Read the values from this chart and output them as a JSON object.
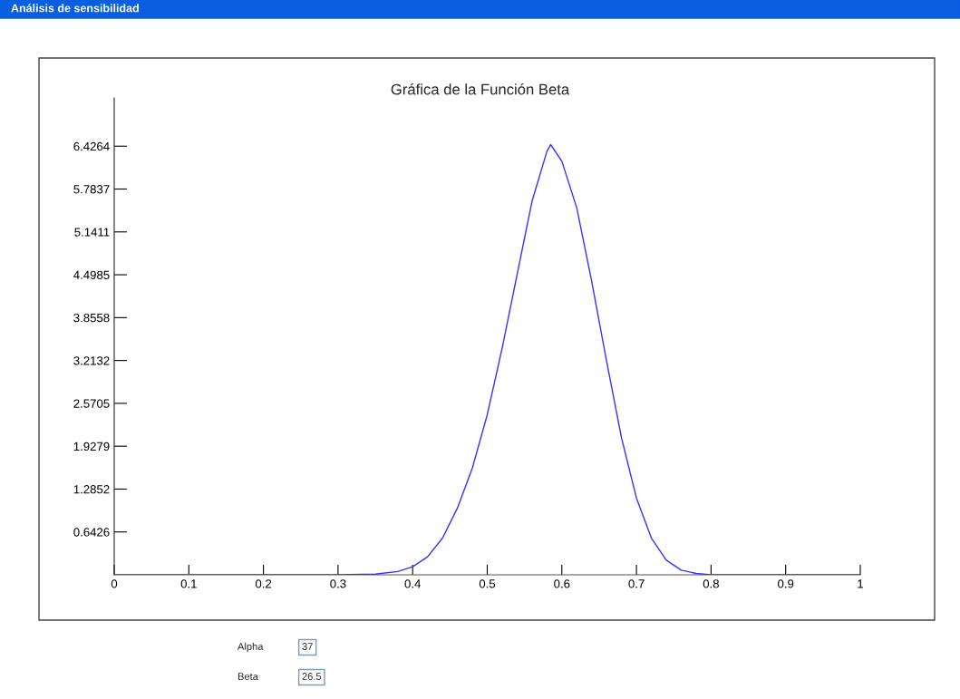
{
  "chart_data": {
    "type": "line",
    "title": "Gráfica de la Función Beta",
    "x": [
      0,
      0.1,
      0.2,
      0.3,
      0.35,
      0.38,
      0.4,
      0.42,
      0.44,
      0.46,
      0.48,
      0.5,
      0.52,
      0.54,
      0.56,
      0.58,
      0.585,
      0.6,
      0.62,
      0.64,
      0.66,
      0.68,
      0.7,
      0.72,
      0.74,
      0.76,
      0.78,
      0.8,
      0.9,
      1
    ],
    "series": [
      {
        "color": "#3333ff",
        "values": [
          0,
          0,
          0,
          0,
          0.01,
          0.05,
          0.12,
          0.27,
          0.55,
          1.0,
          1.6,
          2.4,
          3.4,
          4.5,
          5.6,
          6.35,
          6.45,
          6.2,
          5.5,
          4.4,
          3.2,
          2.05,
          1.15,
          0.55,
          0.22,
          0.07,
          0.02,
          0,
          0,
          0
        ]
      }
    ],
    "xlim": [
      0,
      1
    ],
    "xticks": [
      0,
      0.1,
      0.2,
      0.3,
      0.4,
      0.5,
      0.6,
      0.7,
      0.8,
      0.9,
      1
    ],
    "ylim": [
      0,
      7.15
    ],
    "yticks": [
      0.6426,
      1.2852,
      1.9279,
      2.5705,
      3.2132,
      3.8558,
      4.4985,
      5.1411,
      5.7837,
      6.4264
    ],
    "grid": false,
    "legend": false,
    "annotations": [
      "Análisis de sensibilidad",
      "Alpha",
      "37",
      "Beta",
      "26.5"
    ]
  }
}
